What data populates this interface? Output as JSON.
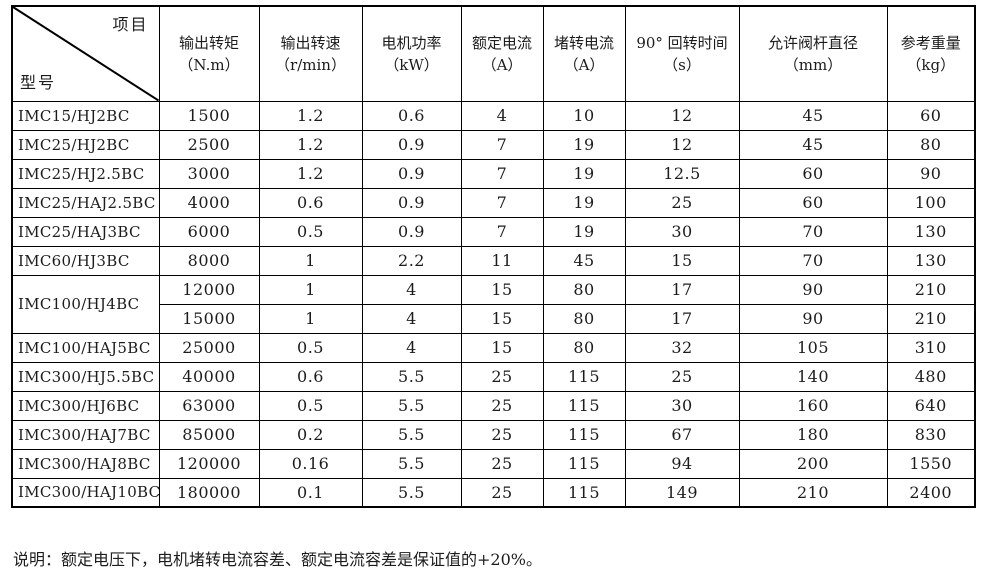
{
  "table": {
    "corner_top": "项目",
    "corner_bottom": "型号",
    "columns": [
      {
        "label": "输出转矩",
        "unit": "（N.m）"
      },
      {
        "label": "输出转速",
        "unit": "（r/min）"
      },
      {
        "label": "电机功率",
        "unit": "（kW）"
      },
      {
        "label": "额定电流",
        "unit": "（A）"
      },
      {
        "label": "堵转电流",
        "unit": "（A）"
      },
      {
        "label": "90° 回转时间",
        "unit": "（s）"
      },
      {
        "label": "允许阀杆直径",
        "unit": "（mm）"
      },
      {
        "label": "参考重量",
        "unit": "（kg）"
      }
    ],
    "rows": [
      {
        "model": "IMC15/HJ2BC",
        "values": [
          "1500",
          "1.2",
          "0.6",
          "4",
          "10",
          "12",
          "45",
          "60"
        ]
      },
      {
        "model": "IMC25/HJ2BC",
        "values": [
          "2500",
          "1.2",
          "0.9",
          "7",
          "19",
          "12",
          "45",
          "80"
        ]
      },
      {
        "model": "IMC25/HJ2.5BC",
        "values": [
          "3000",
          "1.2",
          "0.9",
          "7",
          "19",
          "12.5",
          "60",
          "90"
        ]
      },
      {
        "model": "IMC25/HAJ2.5BC",
        "values": [
          "4000",
          "0.6",
          "0.9",
          "7",
          "19",
          "25",
          "60",
          "100"
        ]
      },
      {
        "model": "IMC25/HAJ3BC",
        "values": [
          "6000",
          "0.5",
          "0.9",
          "7",
          "19",
          "30",
          "70",
          "130"
        ]
      },
      {
        "model": "IMC60/HJ3BC",
        "values": [
          "8000",
          "1",
          "2.2",
          "11",
          "45",
          "15",
          "70",
          "130"
        ]
      },
      {
        "model": "IMC100/HJ4BC",
        "rowspan": 2,
        "values": [
          "12000",
          "1",
          "4",
          "15",
          "80",
          "17",
          "90",
          "210"
        ]
      },
      {
        "model": null,
        "values": [
          "15000",
          "1",
          "4",
          "15",
          "80",
          "17",
          "90",
          "210"
        ]
      },
      {
        "model": "IMC100/HAJ5BC",
        "values": [
          "25000",
          "0.5",
          "4",
          "15",
          "80",
          "32",
          "105",
          "310"
        ]
      },
      {
        "model": "IMC300/HJ5.5BC",
        "values": [
          "40000",
          "0.6",
          "5.5",
          "25",
          "115",
          "25",
          "140",
          "480"
        ]
      },
      {
        "model": "IMC300/HJ6BC",
        "values": [
          "63000",
          "0.5",
          "5.5",
          "25",
          "115",
          "30",
          "160",
          "640"
        ]
      },
      {
        "model": "IMC300/HAJ7BC",
        "values": [
          "85000",
          "0.2",
          "5.5",
          "25",
          "115",
          "67",
          "180",
          "830"
        ]
      },
      {
        "model": "IMC300/HAJ8BC",
        "values": [
          "120000",
          "0.16",
          "5.5",
          "25",
          "115",
          "94",
          "200",
          "1550"
        ]
      },
      {
        "model": "IMC300/HAJ10BC",
        "values": [
          "180000",
          "0.1",
          "5.5",
          "25",
          "115",
          "149",
          "210",
          "2400"
        ]
      }
    ]
  },
  "note": "说明：额定电压下，电机堵转电流容差、额定电流容差是保证值的+20%。"
}
